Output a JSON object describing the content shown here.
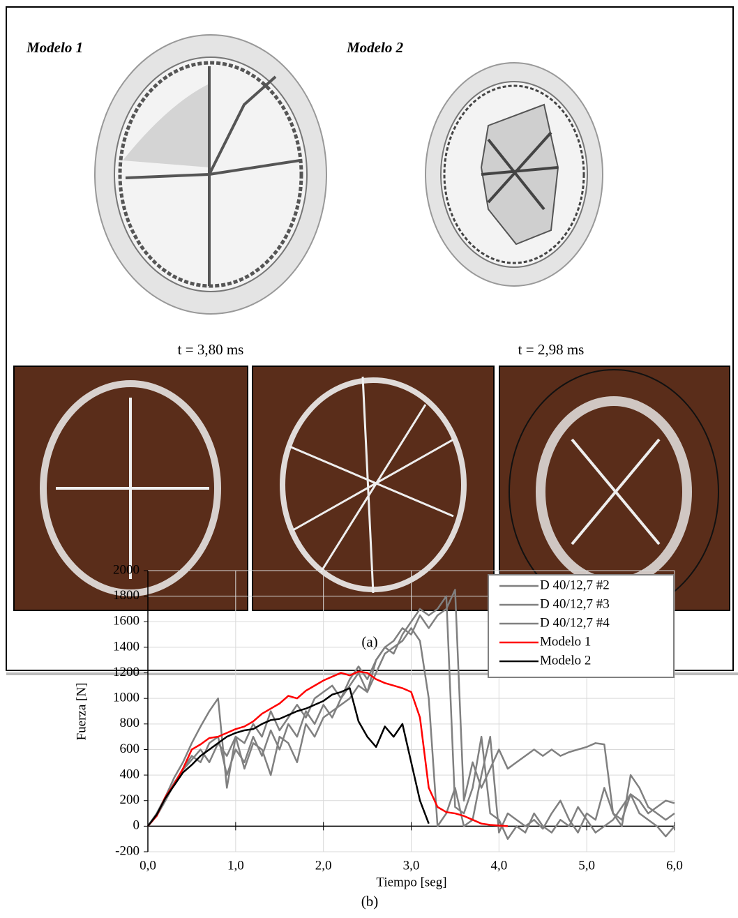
{
  "panel_a": {
    "model_labels": [
      "Modelo 1",
      "Modelo 2"
    ],
    "times": [
      "t = 3,80 ms",
      "t = 2,98 ms"
    ],
    "caption": "(a)"
  },
  "panel_b_caption": "(b)",
  "chart_data": {
    "type": "line",
    "xlabel": "Tiempo [seg]",
    "ylabel": "Fuerza [N]",
    "x": [
      0,
      0.1,
      0.2,
      0.3,
      0.4,
      0.5,
      0.6,
      0.7,
      0.8,
      0.9,
      1.0,
      1.1,
      1.2,
      1.3,
      1.4,
      1.5,
      1.6,
      1.7,
      1.8,
      1.9,
      2.0,
      2.1,
      2.2,
      2.3,
      2.4,
      2.5,
      2.6,
      2.7,
      2.8,
      2.9,
      3.0,
      3.1,
      3.2,
      3.3,
      3.4,
      3.5,
      3.6,
      3.7,
      3.8,
      3.9,
      4.0,
      4.1,
      4.2,
      4.3,
      4.4,
      4.5,
      4.6,
      4.7,
      4.8,
      4.9,
      5.0,
      5.1,
      5.2,
      5.3,
      5.4,
      5.5,
      5.6,
      5.7,
      5.8,
      5.9,
      6.0
    ],
    "series": [
      {
        "name": "D 40/12,7 #2",
        "color": "#808080",
        "values": [
          0,
          100,
          230,
          380,
          500,
          650,
          780,
          900,
          1000,
          300,
          700,
          650,
          800,
          700,
          900,
          750,
          850,
          950,
          850,
          1000,
          1050,
          1100,
          1000,
          1150,
          1250,
          1150,
          1300,
          1400,
          1450,
          1550,
          1500,
          1650,
          1550,
          1650,
          1700,
          1850,
          200,
          500,
          300,
          450,
          600,
          450,
          500,
          550,
          600,
          550,
          600,
          550,
          580,
          600,
          620,
          650,
          640,
          100,
          50,
          250,
          200,
          100,
          150,
          200,
          180
        ]
      },
      {
        "name": "D 40/12,7 #3",
        "color": "#808080",
        "values": [
          0,
          80,
          200,
          330,
          450,
          550,
          500,
          650,
          700,
          400,
          600,
          500,
          700,
          550,
          750,
          600,
          800,
          700,
          900,
          800,
          950,
          850,
          1000,
          1100,
          1200,
          1050,
          1200,
          1350,
          1400,
          1450,
          1550,
          1450,
          1000,
          0,
          100,
          300,
          0,
          50,
          400,
          700,
          -50,
          100,
          50,
          0,
          50,
          -20,
          100,
          200,
          50,
          -50,
          100,
          50,
          300,
          100,
          0,
          400,
          300,
          150,
          100,
          50,
          100
        ]
      },
      {
        "name": "D 40/12,7 #4",
        "color": "#808080",
        "values": [
          0,
          90,
          210,
          340,
          440,
          520,
          600,
          500,
          650,
          550,
          700,
          450,
          650,
          600,
          400,
          700,
          650,
          500,
          800,
          700,
          850,
          900,
          950,
          1000,
          1100,
          1050,
          1300,
          1400,
          1350,
          1500,
          1600,
          1700,
          1650,
          1700,
          1800,
          150,
          100,
          300,
          700,
          100,
          50,
          -100,
          0,
          -50,
          100,
          0,
          -50,
          50,
          0,
          150,
          50,
          -50,
          0,
          50,
          150,
          250,
          100,
          50,
          0,
          -80,
          0
        ]
      },
      {
        "name": "Modelo 1",
        "color": "#ff0000",
        "values": [
          0,
          80,
          230,
          330,
          450,
          600,
          640,
          690,
          700,
          730,
          760,
          780,
          820,
          880,
          920,
          960,
          1020,
          1000,
          1060,
          1100,
          1140,
          1170,
          1200,
          1180,
          1210,
          1200,
          1150,
          1120,
          1100,
          1080,
          1050,
          850,
          300,
          150,
          110,
          100,
          80,
          50,
          20,
          10,
          5,
          0,
          null,
          null,
          null,
          null,
          null,
          null,
          null,
          null,
          null,
          null,
          null,
          null,
          null,
          null,
          null,
          null,
          null,
          null,
          null
        ]
      },
      {
        "name": "Modelo 2",
        "color": "#000000",
        "values": [
          0,
          90,
          220,
          320,
          420,
          480,
          550,
          600,
          650,
          700,
          730,
          750,
          760,
          800,
          830,
          840,
          870,
          900,
          920,
          950,
          980,
          1030,
          1050,
          1080,
          820,
          700,
          620,
          780,
          700,
          800,
          500,
          200,
          20,
          null,
          null,
          null,
          null,
          null,
          null,
          null,
          null,
          null,
          null,
          null,
          null,
          null,
          null,
          null,
          null,
          null,
          null,
          null,
          null,
          null,
          null,
          null,
          null,
          null,
          null,
          null,
          null
        ]
      }
    ],
    "xlim": [
      0,
      6
    ],
    "ylim": [
      -200,
      2000
    ],
    "xticks": [
      {
        "value": 0,
        "label": "0,0"
      },
      {
        "value": 1,
        "label": "1,0"
      },
      {
        "value": 2,
        "label": "2,0"
      },
      {
        "value": 3,
        "label": "3,0"
      },
      {
        "value": 4,
        "label": "4,0"
      },
      {
        "value": 5,
        "label": "5,0"
      },
      {
        "value": 6,
        "label": "6,0"
      }
    ],
    "yticks": [
      -200,
      0,
      200,
      400,
      600,
      800,
      1000,
      1200,
      1400,
      1600,
      1800,
      2000
    ],
    "grid": true,
    "legend": "upper right"
  }
}
